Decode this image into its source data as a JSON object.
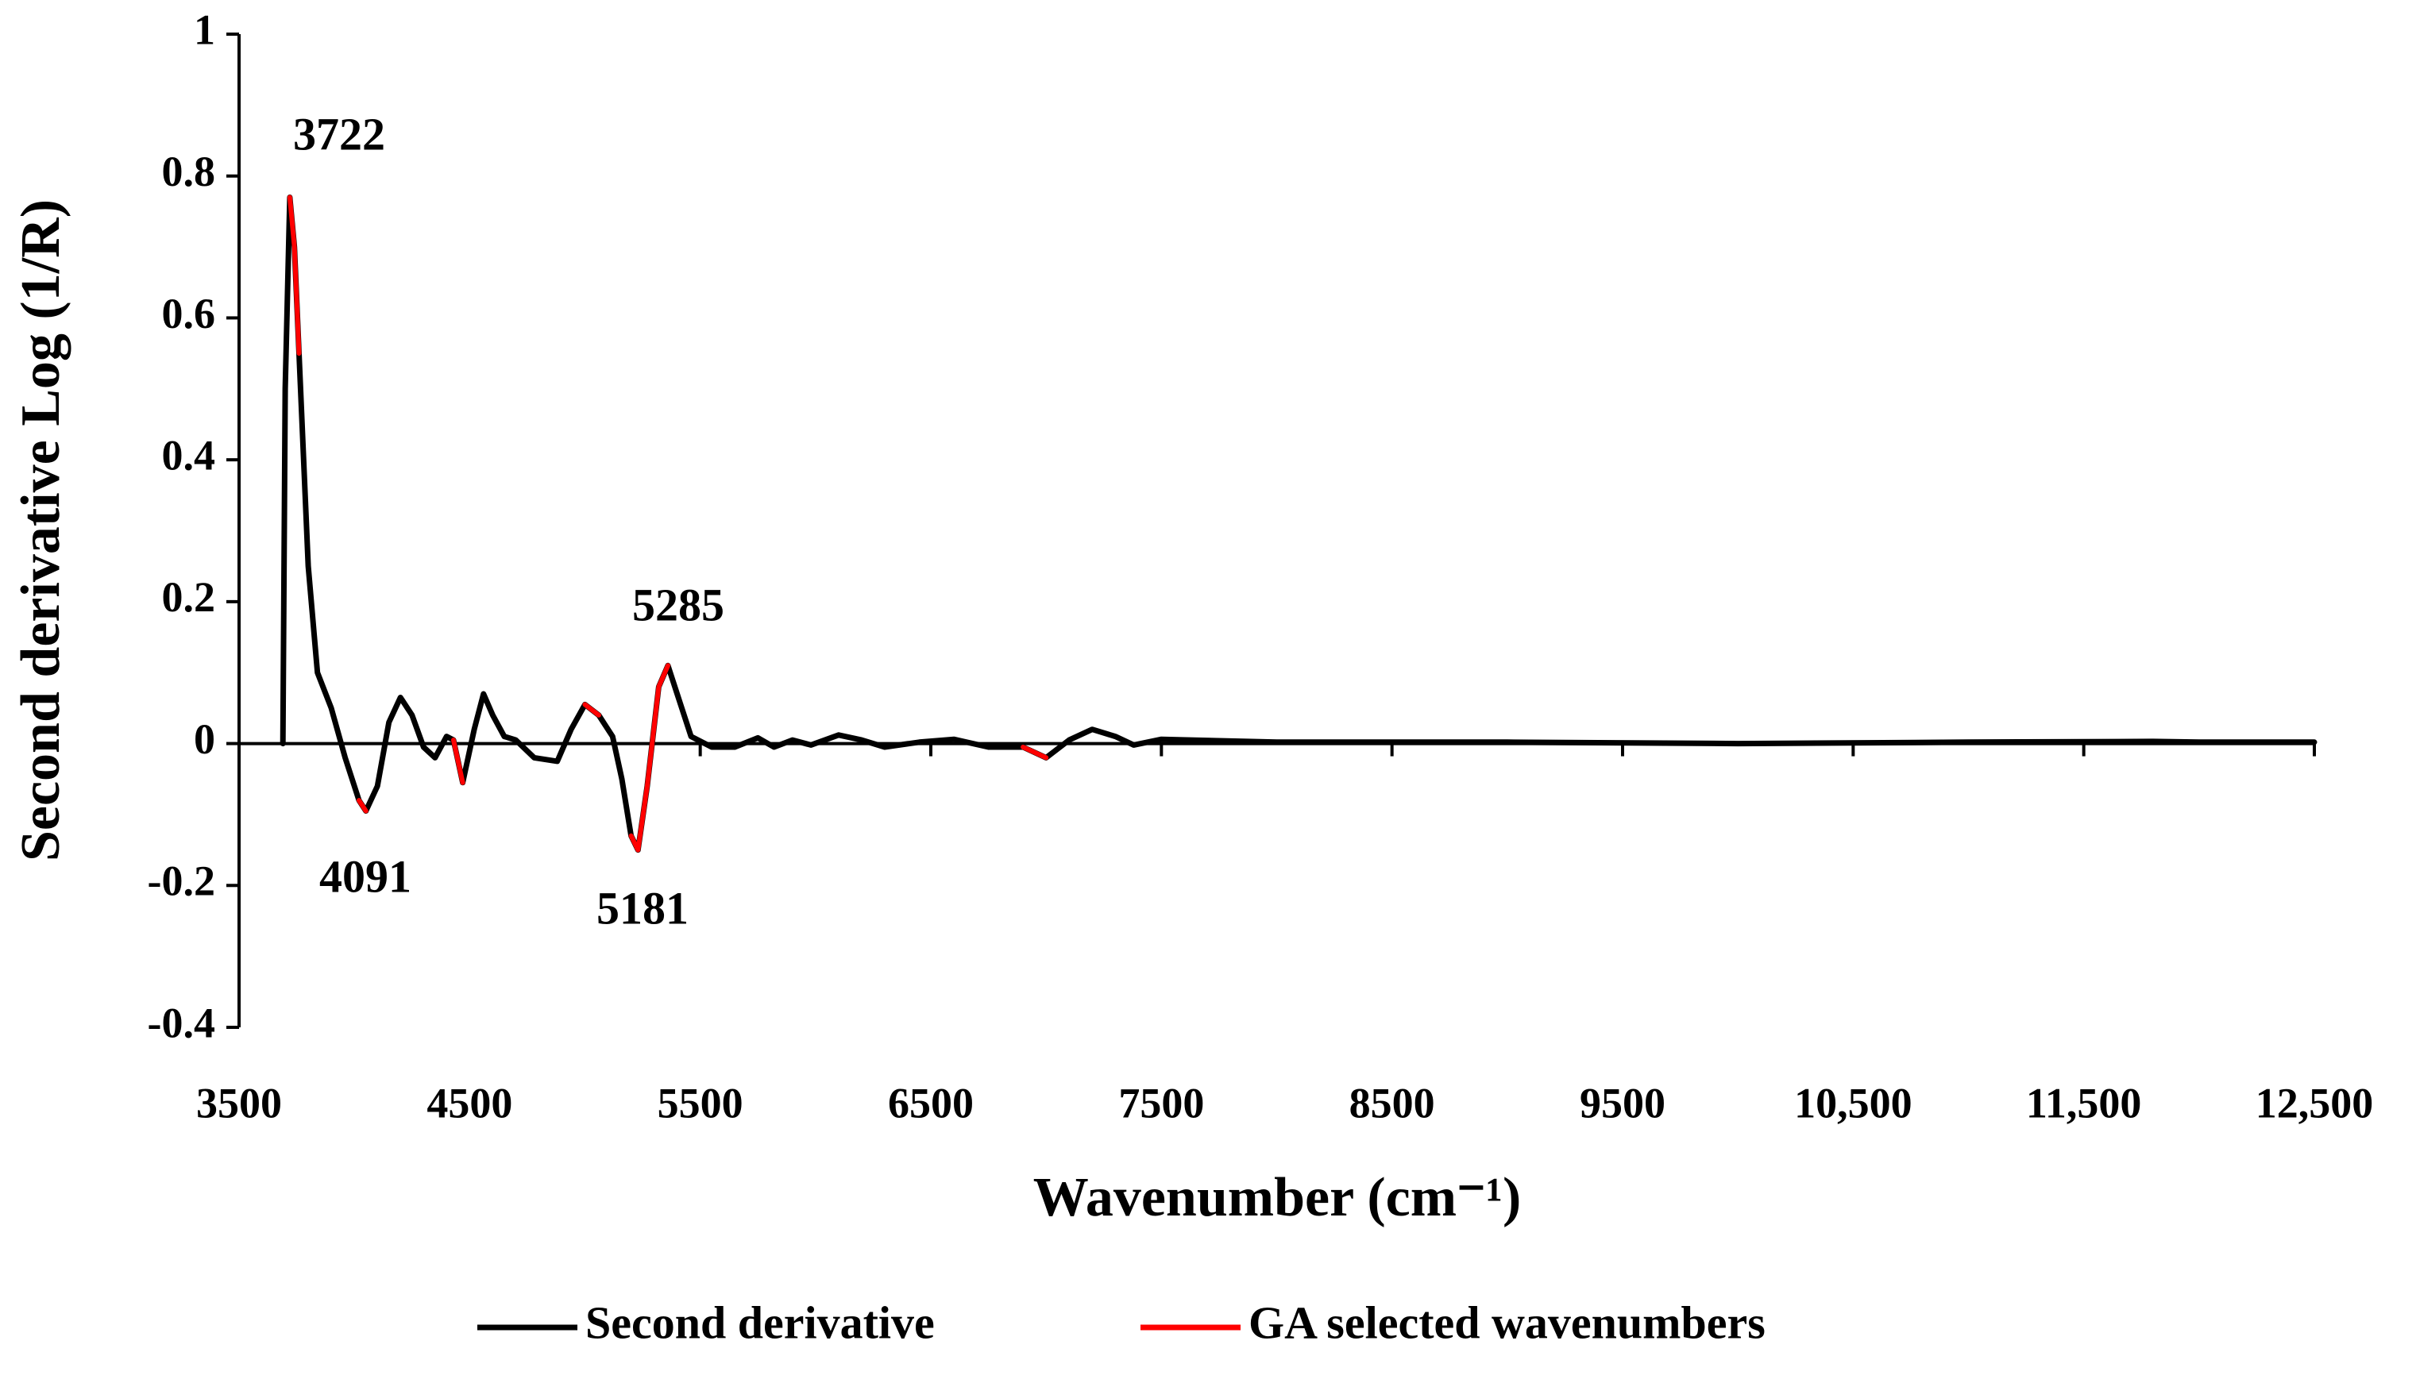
{
  "chart_data": {
    "type": "line",
    "x_label": "Wavenumber (cm⁻¹)",
    "y_label": "Second derivative  Log (1/R)",
    "xlim": [
      3500,
      12500
    ],
    "xticks": [
      3500,
      4500,
      5500,
      6500,
      7500,
      8500,
      9500,
      {
        "value": 10500,
        "label": "10,500"
      },
      {
        "value": 11500,
        "label": "11,500"
      },
      {
        "value": 12500,
        "label": "12,500"
      }
    ],
    "ylim": [
      -0.4,
      1
    ],
    "yticks": [
      -0.4,
      -0.2,
      0,
      0.2,
      0.4,
      0.6,
      0.8,
      1
    ],
    "grid": false,
    "legend": "bottom",
    "annotations": [
      "3722",
      "4091",
      "5285",
      "5181"
    ],
    "x": [
      3690,
      3700,
      3720,
      3740,
      3760,
      3800,
      3840,
      3900,
      3960,
      4020,
      4050,
      4100,
      4150,
      4200,
      4250,
      4300,
      4350,
      4400,
      4430,
      4470,
      4520,
      4560,
      4600,
      4650,
      4700,
      4780,
      4880,
      4940,
      5000,
      5060,
      5120,
      5160,
      5200,
      5230,
      5270,
      5320,
      5360,
      5400,
      5460,
      5550,
      5650,
      5750,
      5820,
      5900,
      5980,
      6100,
      6200,
      6300,
      6450,
      6600,
      6750,
      6900,
      7000,
      7100,
      7200,
      7300,
      7380,
      7500,
      8000,
      9000,
      10000,
      11000,
      11800,
      12000,
      12500
    ],
    "series": [
      {
        "name": "Second derivative",
        "color": "#000000",
        "values": [
          0,
          0.5,
          0.77,
          0.7,
          0.55,
          0.25,
          0.1,
          0.05,
          -0.02,
          -0.08,
          -0.095,
          -0.06,
          0.03,
          0.065,
          0.04,
          -0.005,
          -0.02,
          0.01,
          0.005,
          -0.055,
          0.02,
          0.07,
          0.04,
          0.01,
          0.005,
          -0.02,
          -0.025,
          0.02,
          0.055,
          0.04,
          0.01,
          -0.05,
          -0.13,
          -0.15,
          -0.06,
          0.08,
          0.11,
          0.07,
          0.01,
          -0.005,
          -0.005,
          0.008,
          -0.005,
          0.005,
          -0.002,
          0.012,
          0.005,
          -0.005,
          0.002,
          0.006,
          -0.005,
          -0.005,
          -0.02,
          0.005,
          0.02,
          0.01,
          -0.002,
          0.006,
          0.002,
          0.002,
          0,
          0.002,
          0.003,
          0.002,
          0.002
        ]
      },
      {
        "name": "GA selected wavenumbers",
        "color": "#ff0000",
        "values": [
          null,
          null,
          0.77,
          0.7,
          0.55,
          null,
          null,
          null,
          null,
          -0.08,
          -0.095,
          null,
          null,
          null,
          null,
          null,
          null,
          null,
          0.005,
          -0.055,
          null,
          null,
          null,
          null,
          null,
          null,
          null,
          null,
          0.055,
          0.04,
          null,
          null,
          -0.13,
          -0.15,
          -0.06,
          0.08,
          0.11,
          null,
          null,
          null,
          null,
          null,
          null,
          null,
          null,
          null,
          null,
          null,
          null,
          null,
          null,
          -0.005,
          -0.02,
          null,
          null,
          null,
          null,
          null,
          null,
          null,
          null,
          null,
          null,
          null,
          null
        ]
      }
    ]
  }
}
